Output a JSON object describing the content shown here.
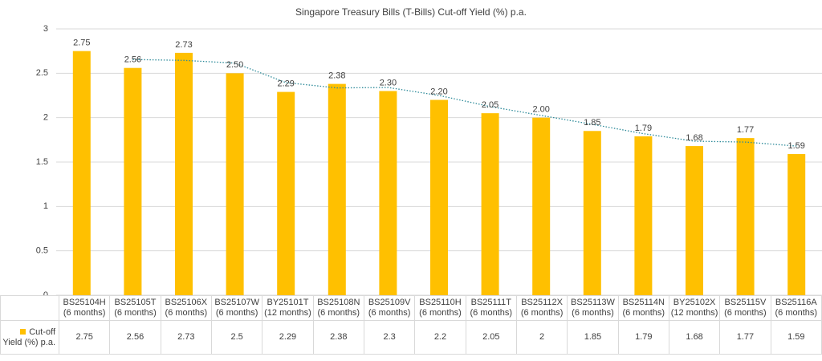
{
  "chart_data": {
    "type": "bar",
    "title": "Singapore Treasury Bills (T-Bills) Cut-off Yield (%) p.a.",
    "categories": [
      "BS25104H\n(6 months)",
      "BS25105T\n(6 months)",
      "BS25106X\n(6 months)",
      "BS25107W\n(6 months)",
      "BY25101T\n(12 months)",
      "BS25108N\n(6 months)",
      "BS25109V\n(6 months)",
      "BS25110H\n(6 months)",
      "BS25111T\n(6 months)",
      "BS25112X\n(6 months)",
      "BS25113W\n(6 months)",
      "BS25114N\n(6 months)",
      "BY25102X\n(12 months)",
      "BS25115V\n(6 months)",
      "BS25116A\n(6 months)"
    ],
    "series": [
      {
        "name": "Cut-off Yield (%) p.a.",
        "color": "#ffc000",
        "values": [
          2.75,
          2.56,
          2.73,
          2.5,
          2.29,
          2.38,
          2.3,
          2.2,
          2.05,
          2,
          1.85,
          1.79,
          1.68,
          1.77,
          1.59
        ],
        "value_labels": [
          "2.75",
          "2.56",
          "2.73",
          "2.50",
          "2.29",
          "2.38",
          "2.30",
          "2.20",
          "2.05",
          "2.00",
          "1.85",
          "1.79",
          "1.68",
          "1.77",
          "1.59"
        ]
      }
    ],
    "ylim": [
      0,
      3
    ],
    "yticks": [
      0,
      0.5,
      1,
      1.5,
      2,
      2.5,
      3
    ],
    "grid": true,
    "trendline": {
      "period": 2,
      "color": "#2e8b9a"
    }
  }
}
